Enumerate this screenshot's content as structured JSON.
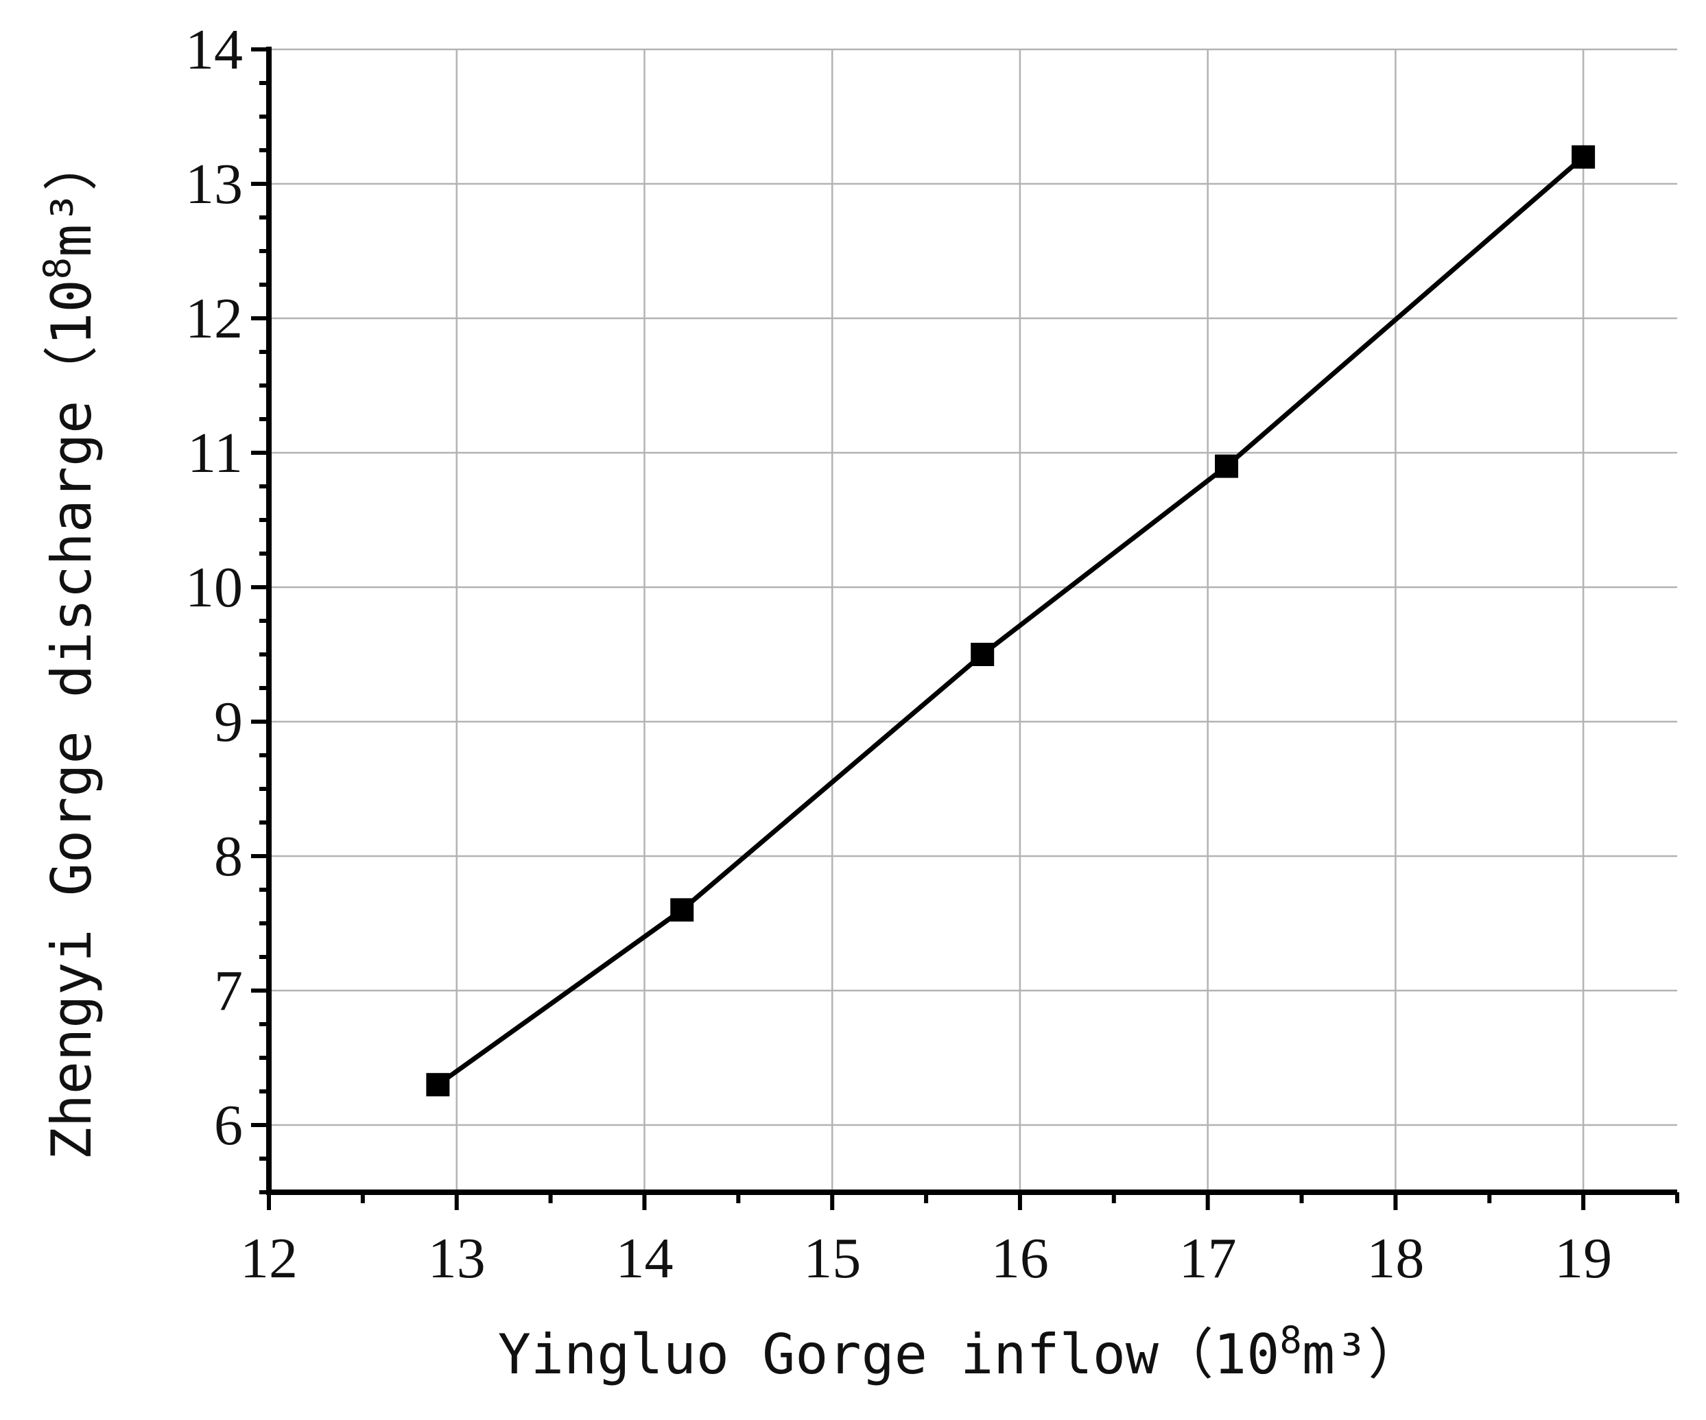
{
  "chart_data": {
    "type": "line",
    "xlabel": "Yingluo Gorge inflow（10",
    "xlabel_sup": "8",
    "xlabel_tail": "m³）",
    "ylabel": "Zhengyi Gorge discharge（10",
    "ylabel_sup": "8",
    "ylabel_tail": "m³）",
    "xlim": [
      12,
      19.5
    ],
    "ylim": [
      5.5,
      14
    ],
    "xticks": [
      "12",
      "13",
      "14",
      "15",
      "16",
      "17",
      "18",
      "19"
    ],
    "yticks": [
      "6",
      "7",
      "8",
      "9",
      "10",
      "11",
      "12",
      "13",
      "14"
    ],
    "grid": true,
    "legend": "none",
    "series": [
      {
        "x": [
          12.9,
          14.2,
          15.8,
          17.1,
          19.0
        ],
        "y": [
          6.3,
          7.6,
          9.5,
          10.9,
          13.2
        ],
        "marker": "square",
        "color": "#000000"
      }
    ]
  }
}
